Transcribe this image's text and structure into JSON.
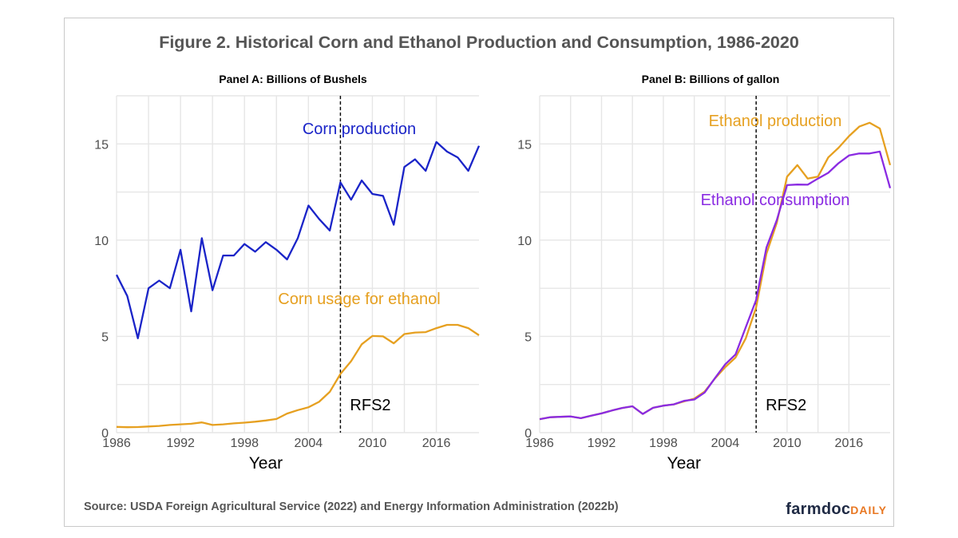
{
  "figure": {
    "title": "Figure 2. Historical Corn and Ethanol Production and Consumption, 1986-2020",
    "source": "Source: USDA Foreign Agricultural Service (2022) and Energy Information Administration (2022b)",
    "logo_main": "farmdoc",
    "logo_accent": "DAILY"
  },
  "chart_data": [
    {
      "type": "line",
      "title": "Panel A: Billions of Bushels",
      "xlabel": "Year",
      "ylabel": "",
      "xlim": [
        1986,
        2020
      ],
      "ylim": [
        0,
        17.5
      ],
      "xticks": [
        1986,
        1992,
        1998,
        2004,
        2010,
        2016
      ],
      "yticks": [
        0,
        5,
        10,
        15
      ],
      "grid": true,
      "vline": {
        "x": 2007,
        "label": "RFS2"
      },
      "x": [
        1986,
        1987,
        1988,
        1989,
        1990,
        1991,
        1992,
        1993,
        1994,
        1995,
        1996,
        1997,
        1998,
        1999,
        2000,
        2001,
        2002,
        2003,
        2004,
        2005,
        2006,
        2007,
        2008,
        2009,
        2010,
        2011,
        2012,
        2013,
        2014,
        2015,
        2016,
        2017,
        2018,
        2019,
        2020
      ],
      "series": [
        {
          "name": "Corn production",
          "color": "#1a24c8",
          "values": [
            8.2,
            7.1,
            4.9,
            7.5,
            7.9,
            7.5,
            9.5,
            6.3,
            10.1,
            7.4,
            9.2,
            9.2,
            9.8,
            9.4,
            9.9,
            9.5,
            9.0,
            10.1,
            11.8,
            11.1,
            10.5,
            13.0,
            12.1,
            13.1,
            12.4,
            12.3,
            10.8,
            13.8,
            14.2,
            13.6,
            15.1,
            14.6,
            14.3,
            13.6,
            14.9
          ]
        },
        {
          "name": "Corn usage for ethanol",
          "color": "#e6a020",
          "values": [
            0.3,
            0.28,
            0.29,
            0.32,
            0.35,
            0.4,
            0.43,
            0.46,
            0.53,
            0.4,
            0.43,
            0.48,
            0.52,
            0.57,
            0.63,
            0.71,
            0.99,
            1.17,
            1.32,
            1.6,
            2.12,
            3.05,
            3.71,
            4.59,
            5.02,
            5.0,
            4.64,
            5.12,
            5.2,
            5.22,
            5.43,
            5.6,
            5.6,
            5.43,
            5.06
          ]
        }
      ]
    },
    {
      "type": "line",
      "title": "Panel B: Billions of gallon",
      "xlabel": "Year",
      "ylabel": "",
      "xlim": [
        1986,
        2020
      ],
      "ylim": [
        0,
        17.5
      ],
      "xticks": [
        1986,
        1992,
        1998,
        2004,
        2010,
        2016
      ],
      "yticks": [
        0,
        5,
        10,
        15
      ],
      "grid": true,
      "vline": {
        "x": 2007,
        "label": "RFS2"
      },
      "x": [
        1986,
        1987,
        1988,
        1989,
        1990,
        1991,
        1992,
        1993,
        1994,
        1995,
        1996,
        1997,
        1998,
        1999,
        2000,
        2001,
        2002,
        2003,
        2004,
        2005,
        2006,
        2007,
        2008,
        2009,
        2010,
        2011,
        2012,
        2013,
        2014,
        2015,
        2016,
        2017,
        2018,
        2019,
        2020
      ],
      "series": [
        {
          "name": "Ethanol production",
          "color": "#e6a020",
          "values": [
            0.7,
            0.8,
            0.82,
            0.84,
            0.75,
            0.88,
            1.0,
            1.15,
            1.28,
            1.37,
            0.97,
            1.29,
            1.4,
            1.47,
            1.62,
            1.77,
            2.13,
            2.81,
            3.4,
            3.9,
            4.9,
            6.5,
            9.3,
            10.9,
            13.3,
            13.9,
            13.2,
            13.3,
            14.3,
            14.8,
            15.4,
            15.9,
            16.1,
            15.8,
            13.9
          ]
        },
        {
          "name": "Ethanol consumption",
          "color": "#8a2be2",
          "values": [
            0.7,
            0.8,
            0.82,
            0.84,
            0.75,
            0.88,
            1.0,
            1.15,
            1.28,
            1.37,
            0.97,
            1.29,
            1.4,
            1.47,
            1.65,
            1.72,
            2.08,
            2.83,
            3.55,
            4.06,
            5.48,
            6.89,
            9.62,
            11.04,
            12.86,
            12.89,
            12.88,
            13.2,
            13.5,
            14.0,
            14.4,
            14.5,
            14.5,
            14.6,
            12.7
          ]
        }
      ]
    }
  ]
}
